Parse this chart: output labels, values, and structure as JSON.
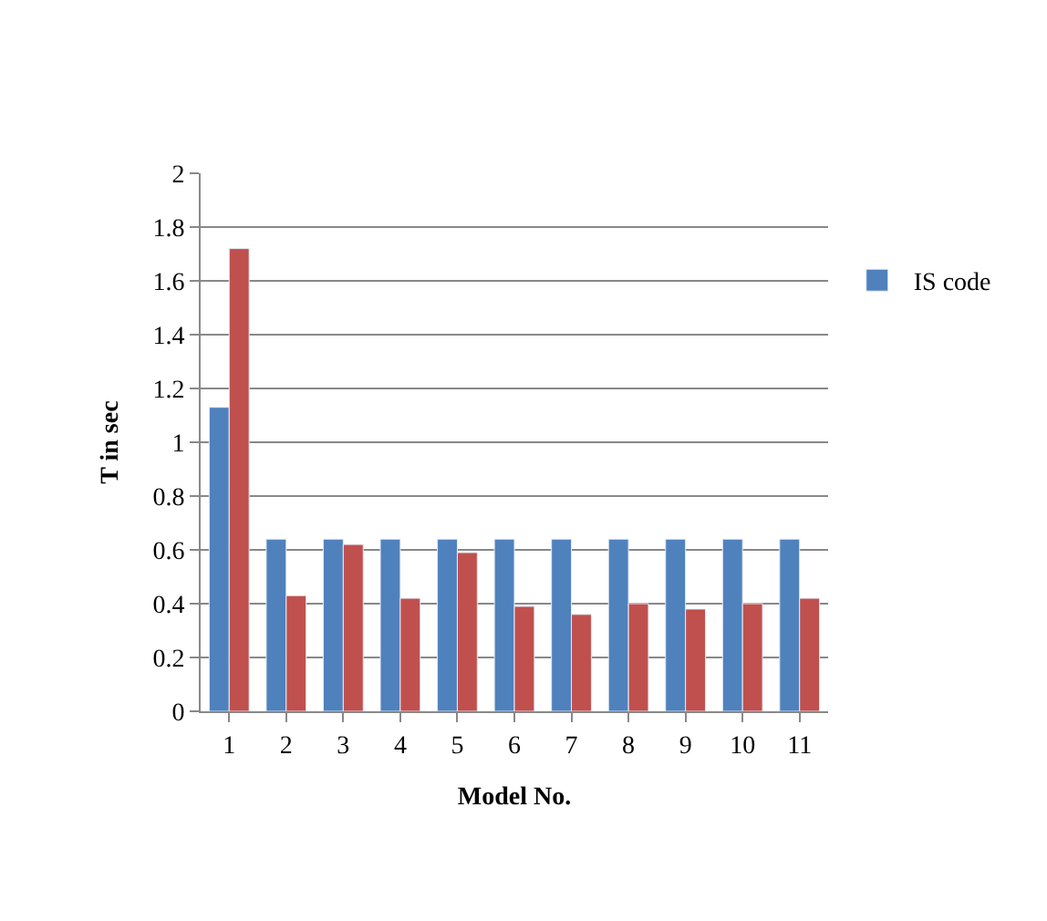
{
  "chart_data": {
    "type": "bar",
    "xlabel": "Model No.",
    "ylabel": "T in sec",
    "categories": [
      "1",
      "2",
      "3",
      "4",
      "5",
      "6",
      "7",
      "8",
      "9",
      "10",
      "11"
    ],
    "series": [
      {
        "name": "IS code",
        "color": "#4f81bd",
        "values": [
          1.13,
          0.64,
          0.64,
          0.64,
          0.64,
          0.64,
          0.64,
          0.64,
          0.64,
          0.64,
          0.64
        ]
      },
      {
        "color": "#c0504d",
        "values": [
          1.72,
          0.43,
          0.62,
          0.42,
          0.59,
          0.39,
          0.36,
          0.4,
          0.38,
          0.4,
          0.42
        ]
      }
    ],
    "ylim": [
      0,
      2
    ],
    "yticks": [
      0,
      0.2,
      0.4,
      0.6,
      0.8,
      1,
      1.2,
      1.4,
      1.6,
      1.8,
      2
    ],
    "grid": "y",
    "legend": "right"
  }
}
